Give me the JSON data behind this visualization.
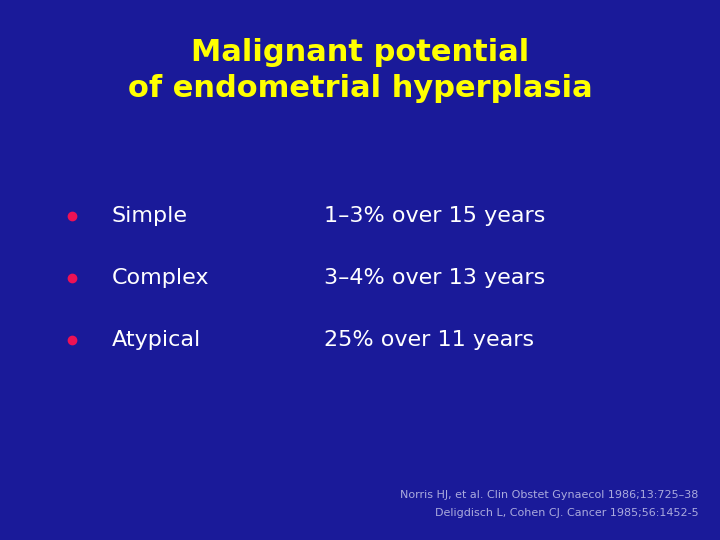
{
  "background_color": "#1a1a99",
  "title_line1": "Malignant potential",
  "title_line2": "of endometrial hyperplasia",
  "title_color": "#ffff00",
  "title_fontsize": 22,
  "title_fontweight": "bold",
  "bullet_color": "#ee1155",
  "bullet_labels": [
    "Simple",
    "Complex",
    "Atypical"
  ],
  "bullet_values": [
    "1–3% over 15 years",
    "3–4% over 13 years",
    "25% over 11 years"
  ],
  "text_color": "#ffffff",
  "bullet_fontsize": 16,
  "ref_line1": "Norris HJ, et al. Clin Obstet Gynaecol 1986;13:725–38",
  "ref_line2": "Deligdisch L, Cohen CJ. Cancer 1985;56:1452-5",
  "ref_color": "#aaaadd",
  "ref_fontsize": 8
}
